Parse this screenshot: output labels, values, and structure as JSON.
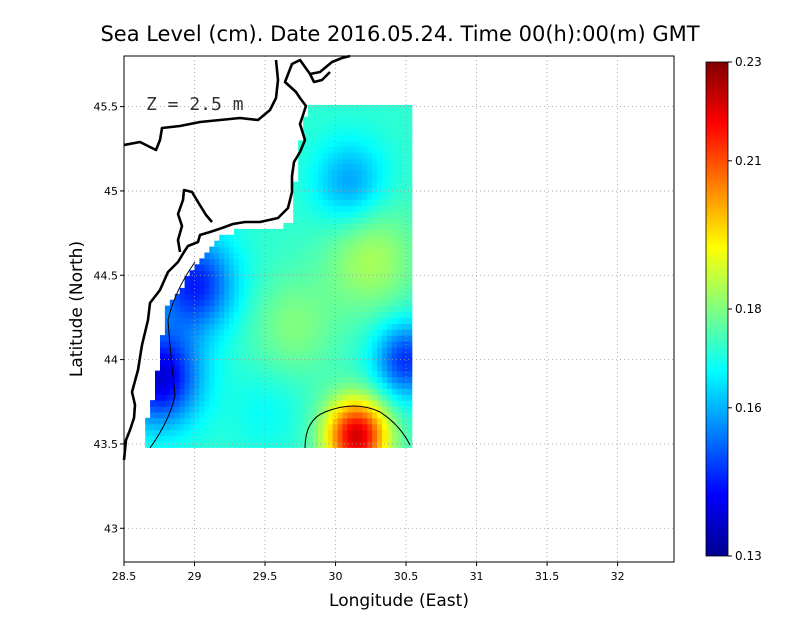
{
  "chart_data": {
    "type": "heatmap",
    "title": "Sea Level (cm). Date 2016.05.24. Time 00(h):00(m) GMT",
    "xlabel": "Longitude (East)",
    "ylabel": "Latitude (North)",
    "annotation": "Z = 2.5 m",
    "xlim": [
      28.5,
      32.4
    ],
    "ylim": [
      42.8,
      45.8
    ],
    "x_ticks": [
      "28.5",
      "29",
      "29.5",
      "30",
      "30.5",
      "31",
      "31.5",
      "32"
    ],
    "y_ticks": [
      "43",
      "43.5",
      "44",
      "44.5",
      "45",
      "45.5"
    ],
    "grid": true,
    "colorbar": {
      "min": 0.13,
      "max": 0.23,
      "ticks": [
        "0.23",
        "0.21",
        "0.18",
        "0.16",
        "0.13"
      ],
      "colors": [
        "#00008f",
        "#0000ff",
        "#0080ff",
        "#00ffff",
        "#80ff80",
        "#ffff00",
        "#ff8000",
        "#ff0000",
        "#800000"
      ]
    },
    "field": {
      "lon_range": [
        28.65,
        30.55
      ],
      "lat_range": [
        43.48,
        45.5
      ],
      "background": 0.172,
      "features": [
        {
          "lon": 30.15,
          "lat": 43.55,
          "value": 0.222,
          "radius": 0.22
        },
        {
          "lon": 28.75,
          "lat": 43.9,
          "value": 0.138,
          "radius": 0.28
        },
        {
          "lon": 29.0,
          "lat": 44.45,
          "value": 0.145,
          "radius": 0.28
        },
        {
          "lon": 30.5,
          "lat": 44.0,
          "value": 0.147,
          "radius": 0.22
        },
        {
          "lon": 30.1,
          "lat": 45.05,
          "value": 0.158,
          "radius": 0.25
        },
        {
          "lon": 30.25,
          "lat": 44.6,
          "value": 0.184,
          "radius": 0.32
        },
        {
          "lon": 29.7,
          "lat": 44.2,
          "value": 0.18,
          "radius": 0.3
        },
        {
          "lon": 29.5,
          "lat": 43.7,
          "value": 0.168,
          "radius": 0.25
        }
      ]
    }
  }
}
